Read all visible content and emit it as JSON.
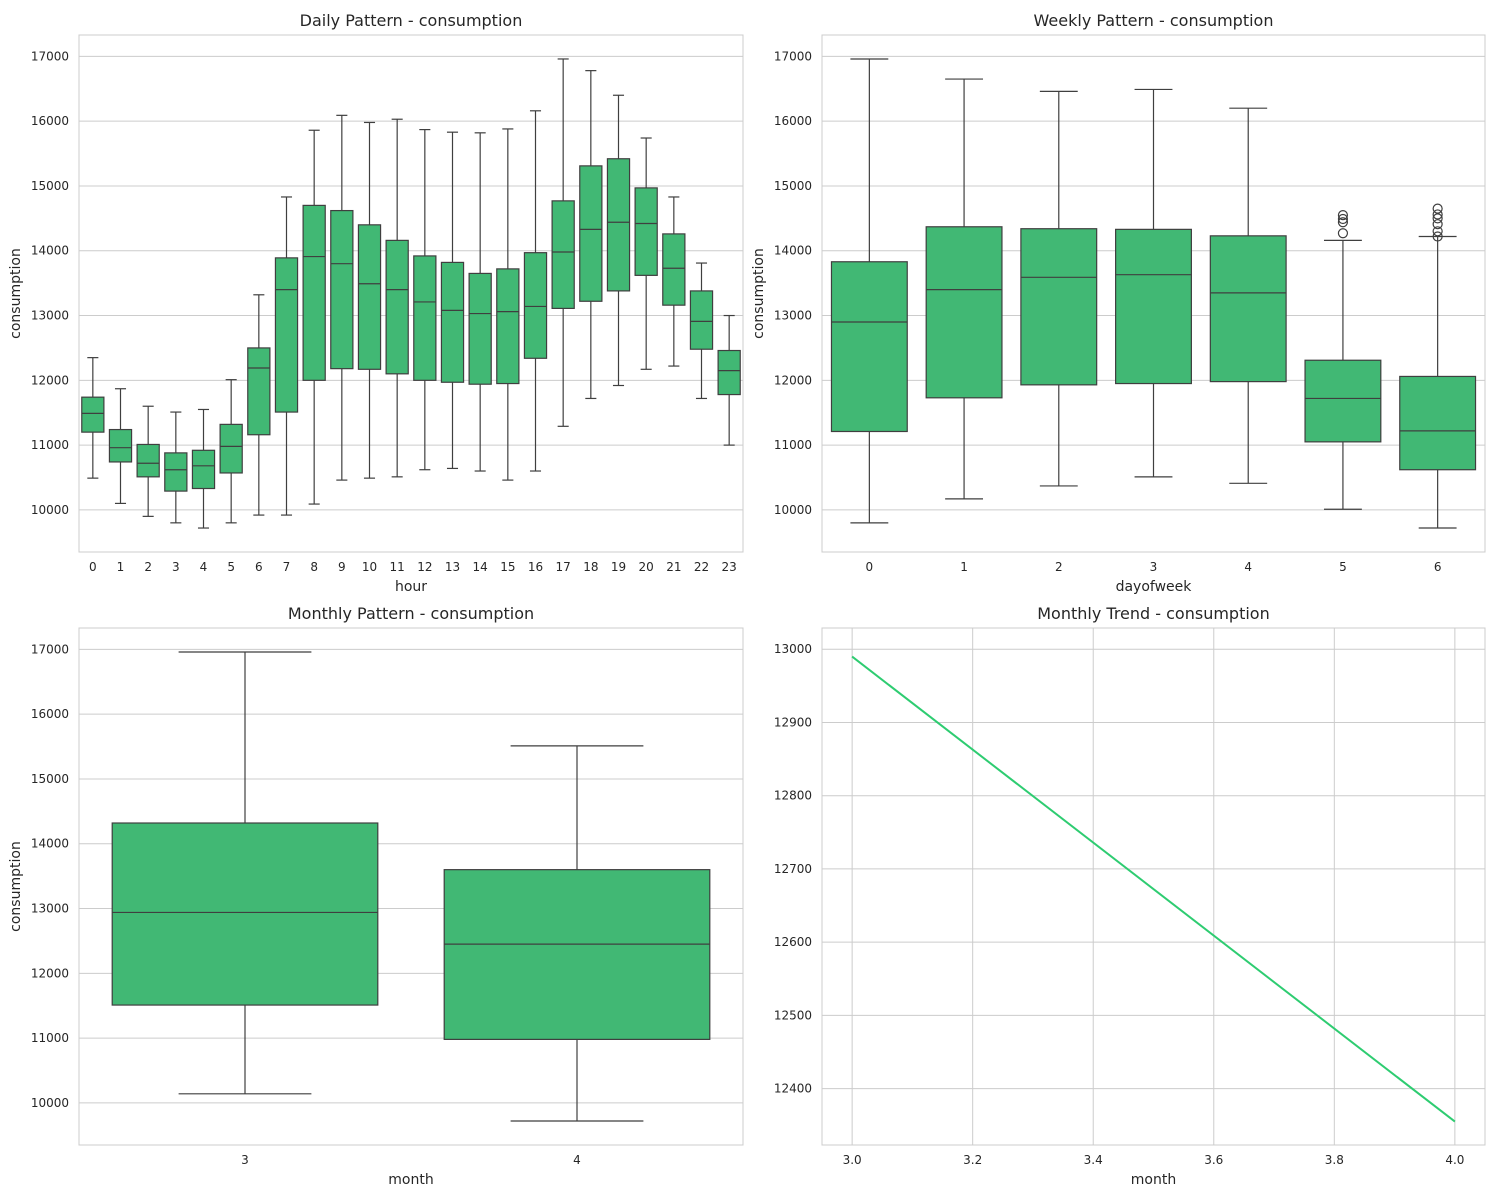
{
  "colors": {
    "box_fill": "#41b874",
    "line": "#2ecc71",
    "edge": "#3f3f3f",
    "grid": "#cccccc",
    "frame": "#cccccc"
  },
  "chart_data": [
    {
      "type": "box",
      "title": "Daily Pattern - consumption",
      "xlabel": "hour",
      "ylabel": "consumption",
      "ylim": [
        9350,
        17330
      ],
      "yticks": [
        10000,
        11000,
        12000,
        13000,
        14000,
        15000,
        16000,
        17000
      ],
      "grid": "y",
      "categories": [
        "0",
        "1",
        "2",
        "3",
        "4",
        "5",
        "6",
        "7",
        "8",
        "9",
        "10",
        "11",
        "12",
        "13",
        "14",
        "15",
        "16",
        "17",
        "18",
        "19",
        "20",
        "21",
        "22",
        "23"
      ],
      "boxes": [
        {
          "whislo": 10490,
          "q1": 11200,
          "med": 11490,
          "q3": 11740,
          "whishi": 12350,
          "fliers": []
        },
        {
          "whislo": 10100,
          "q1": 10740,
          "med": 10960,
          "q3": 11240,
          "whishi": 11870,
          "fliers": []
        },
        {
          "whislo": 9900,
          "q1": 10510,
          "med": 10720,
          "q3": 11010,
          "whishi": 11600,
          "fliers": []
        },
        {
          "whislo": 9800,
          "q1": 10290,
          "med": 10620,
          "q3": 10880,
          "whishi": 11510,
          "fliers": []
        },
        {
          "whislo": 9720,
          "q1": 10330,
          "med": 10680,
          "q3": 10920,
          "whishi": 11550,
          "fliers": []
        },
        {
          "whislo": 9800,
          "q1": 10570,
          "med": 10980,
          "q3": 11320,
          "whishi": 12010,
          "fliers": []
        },
        {
          "whislo": 9920,
          "q1": 11160,
          "med": 12190,
          "q3": 12500,
          "whishi": 13320,
          "fliers": []
        },
        {
          "whislo": 9920,
          "q1": 11510,
          "med": 13400,
          "q3": 13890,
          "whishi": 14830,
          "fliers": []
        },
        {
          "whislo": 10090,
          "q1": 12000,
          "med": 13910,
          "q3": 14700,
          "whishi": 15860,
          "fliers": []
        },
        {
          "whislo": 10460,
          "q1": 12180,
          "med": 13800,
          "q3": 14620,
          "whishi": 16090,
          "fliers": []
        },
        {
          "whislo": 10490,
          "q1": 12170,
          "med": 13490,
          "q3": 14400,
          "whishi": 15980,
          "fliers": []
        },
        {
          "whislo": 10510,
          "q1": 12100,
          "med": 13400,
          "q3": 14160,
          "whishi": 16030,
          "fliers": []
        },
        {
          "whislo": 10620,
          "q1": 12000,
          "med": 13210,
          "q3": 13920,
          "whishi": 15870,
          "fliers": []
        },
        {
          "whislo": 10640,
          "q1": 11970,
          "med": 13080,
          "q3": 13820,
          "whishi": 15830,
          "fliers": []
        },
        {
          "whislo": 10600,
          "q1": 11940,
          "med": 13030,
          "q3": 13650,
          "whishi": 15820,
          "fliers": []
        },
        {
          "whislo": 10460,
          "q1": 11950,
          "med": 13060,
          "q3": 13720,
          "whishi": 15880,
          "fliers": []
        },
        {
          "whislo": 10600,
          "q1": 12340,
          "med": 13140,
          "q3": 13970,
          "whishi": 16160,
          "fliers": []
        },
        {
          "whislo": 11290,
          "q1": 13110,
          "med": 13980,
          "q3": 14770,
          "whishi": 16960,
          "fliers": []
        },
        {
          "whislo": 11720,
          "q1": 13220,
          "med": 14330,
          "q3": 15310,
          "whishi": 16780,
          "fliers": []
        },
        {
          "whislo": 11920,
          "q1": 13380,
          "med": 14440,
          "q3": 15420,
          "whishi": 16400,
          "fliers": []
        },
        {
          "whislo": 12170,
          "q1": 13620,
          "med": 14420,
          "q3": 14970,
          "whishi": 15740,
          "fliers": []
        },
        {
          "whislo": 12220,
          "q1": 13160,
          "med": 13730,
          "q3": 14260,
          "whishi": 14830,
          "fliers": []
        },
        {
          "whislo": 11720,
          "q1": 12480,
          "med": 12910,
          "q3": 13380,
          "whishi": 13810,
          "fliers": []
        },
        {
          "whislo": 11000,
          "q1": 11780,
          "med": 12150,
          "q3": 12460,
          "whishi": 13000,
          "fliers": []
        }
      ]
    },
    {
      "type": "box",
      "title": "Weekly Pattern - consumption",
      "xlabel": "dayofweek",
      "ylabel": "consumption",
      "ylim": [
        9350,
        17330
      ],
      "yticks": [
        10000,
        11000,
        12000,
        13000,
        14000,
        15000,
        16000,
        17000
      ],
      "grid": "y",
      "categories": [
        "0",
        "1",
        "2",
        "3",
        "4",
        "5",
        "6"
      ],
      "boxes": [
        {
          "whislo": 9800,
          "q1": 11210,
          "med": 12900,
          "q3": 13830,
          "whishi": 16960,
          "fliers": []
        },
        {
          "whislo": 10170,
          "q1": 11730,
          "med": 13400,
          "q3": 14370,
          "whishi": 16650,
          "fliers": []
        },
        {
          "whislo": 10370,
          "q1": 11930,
          "med": 13590,
          "q3": 14340,
          "whishi": 16460,
          "fliers": []
        },
        {
          "whislo": 10510,
          "q1": 11950,
          "med": 13630,
          "q3": 14330,
          "whishi": 16490,
          "fliers": []
        },
        {
          "whislo": 10410,
          "q1": 11980,
          "med": 13350,
          "q3": 14230,
          "whishi": 16200,
          "fliers": []
        },
        {
          "whislo": 10010,
          "q1": 11050,
          "med": 11720,
          "q3": 12310,
          "whishi": 14160,
          "fliers": [
            14270,
            14440,
            14490,
            14550
          ]
        },
        {
          "whislo": 9720,
          "q1": 10620,
          "med": 11220,
          "q3": 12060,
          "whishi": 14220,
          "fliers": [
            14220,
            14300,
            14410,
            14500,
            14560,
            14650
          ]
        }
      ]
    },
    {
      "type": "box",
      "title": "Monthly Pattern - consumption",
      "xlabel": "month",
      "ylabel": "consumption",
      "ylim": [
        9350,
        17330
      ],
      "yticks": [
        10000,
        11000,
        12000,
        13000,
        14000,
        15000,
        16000,
        17000
      ],
      "grid": "y",
      "categories": [
        "3",
        "4"
      ],
      "boxes": [
        {
          "whislo": 10140,
          "q1": 11510,
          "med": 12940,
          "q3": 14320,
          "whishi": 16960,
          "fliers": []
        },
        {
          "whislo": 9720,
          "q1": 10980,
          "med": 12450,
          "q3": 13600,
          "whishi": 15510,
          "fliers": []
        }
      ]
    },
    {
      "type": "line",
      "title": "Monthly Trend - consumption",
      "xlabel": "month",
      "ylabel": "",
      "xlim": [
        2.95,
        4.05
      ],
      "ylim": [
        12323,
        13029
      ],
      "xticks": [
        3.0,
        3.2,
        3.4,
        3.6,
        3.8,
        4.0
      ],
      "xtick_labels": [
        "3.0",
        "3.2",
        "3.4",
        "3.6",
        "3.8",
        "4.0"
      ],
      "yticks": [
        12400,
        12500,
        12600,
        12700,
        12800,
        12900,
        13000
      ],
      "grid": "both",
      "x": [
        3,
        4
      ],
      "y": [
        12990,
        12355
      ]
    }
  ]
}
